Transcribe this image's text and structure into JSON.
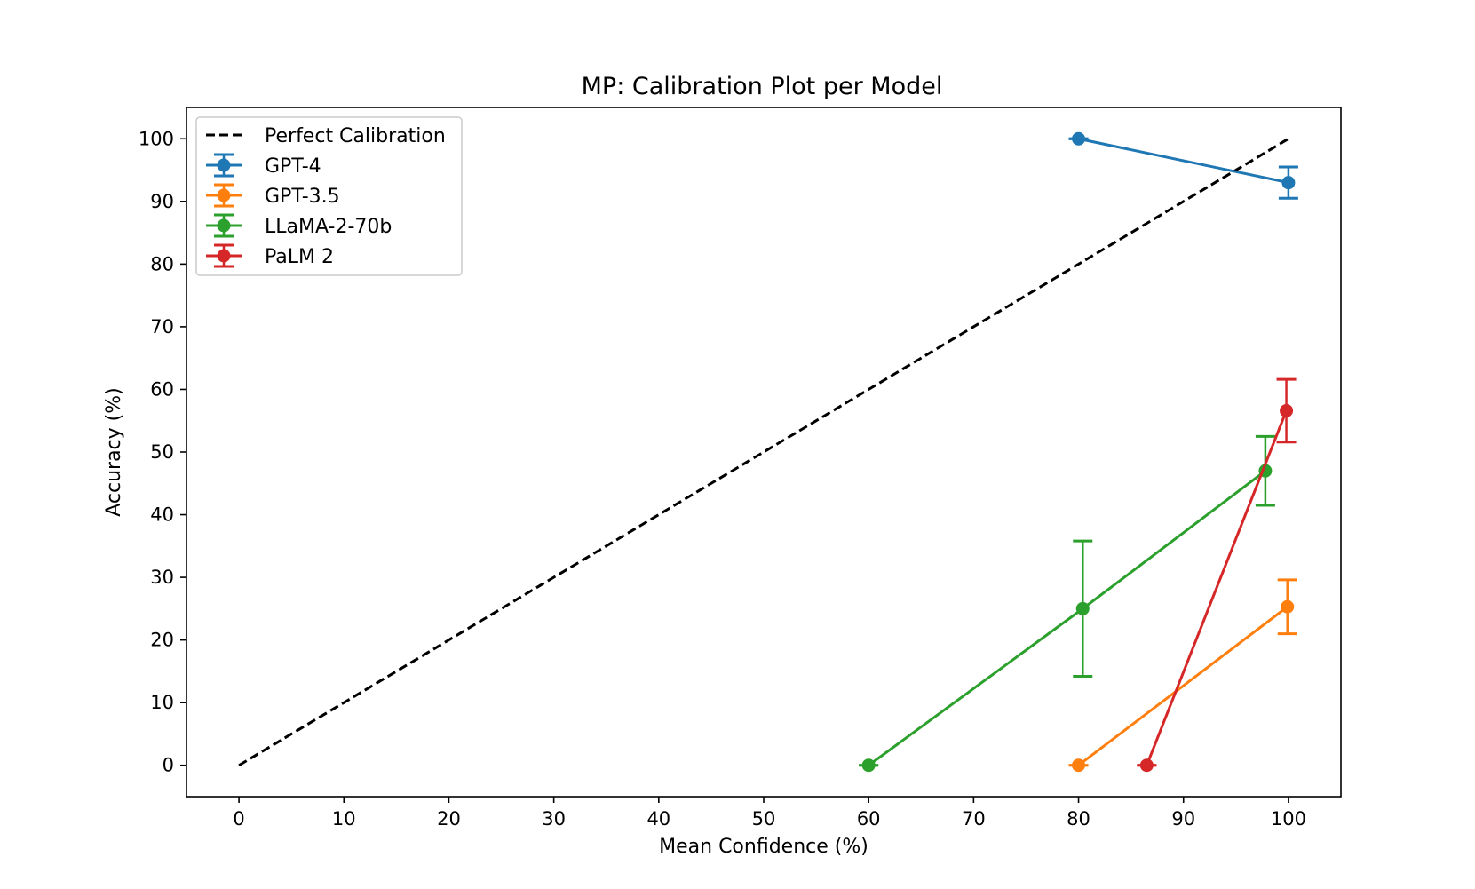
{
  "chart_data": {
    "type": "line",
    "title": "MP: Calibration Plot per Model",
    "xlabel": "Mean Confidence (%)",
    "ylabel": "Accuracy (%)",
    "xlim": [
      -5,
      105
    ],
    "ylim": [
      -5,
      105
    ],
    "xticks": [
      0,
      10,
      20,
      30,
      40,
      50,
      60,
      70,
      80,
      90,
      100
    ],
    "yticks": [
      0,
      10,
      20,
      30,
      40,
      50,
      60,
      70,
      80,
      90,
      100
    ],
    "grid": false,
    "legend_position": "top-left",
    "reference_line": {
      "name": "Perfect Calibration",
      "style": "dashed",
      "color": "#000000",
      "x": [
        0,
        100
      ],
      "y": [
        0,
        100
      ]
    },
    "series": [
      {
        "name": "GPT-4",
        "color": "#1f77b4",
        "points": [
          {
            "x": 80.0,
            "y": 100.0,
            "err": 0.0
          },
          {
            "x": 100.0,
            "y": 93.0,
            "err": 2.5
          }
        ]
      },
      {
        "name": "GPT-3.5",
        "color": "#ff7f0e",
        "points": [
          {
            "x": 80.0,
            "y": 0.0,
            "err": 0.0
          },
          {
            "x": 99.9,
            "y": 25.3,
            "err": 4.3
          }
        ]
      },
      {
        "name": "LLaMA-2-70b",
        "color": "#2ca02c",
        "points": [
          {
            "x": 60.0,
            "y": 0.0,
            "err": 0.0
          },
          {
            "x": 80.4,
            "y": 25.0,
            "err": 10.8
          },
          {
            "x": 97.8,
            "y": 47.0,
            "err": 5.5
          }
        ]
      },
      {
        "name": "PaLM 2",
        "color": "#d62728",
        "points": [
          {
            "x": 86.5,
            "y": 0.0,
            "err": 0.0
          },
          {
            "x": 99.8,
            "y": 56.6,
            "err": 5.0
          }
        ]
      }
    ]
  }
}
